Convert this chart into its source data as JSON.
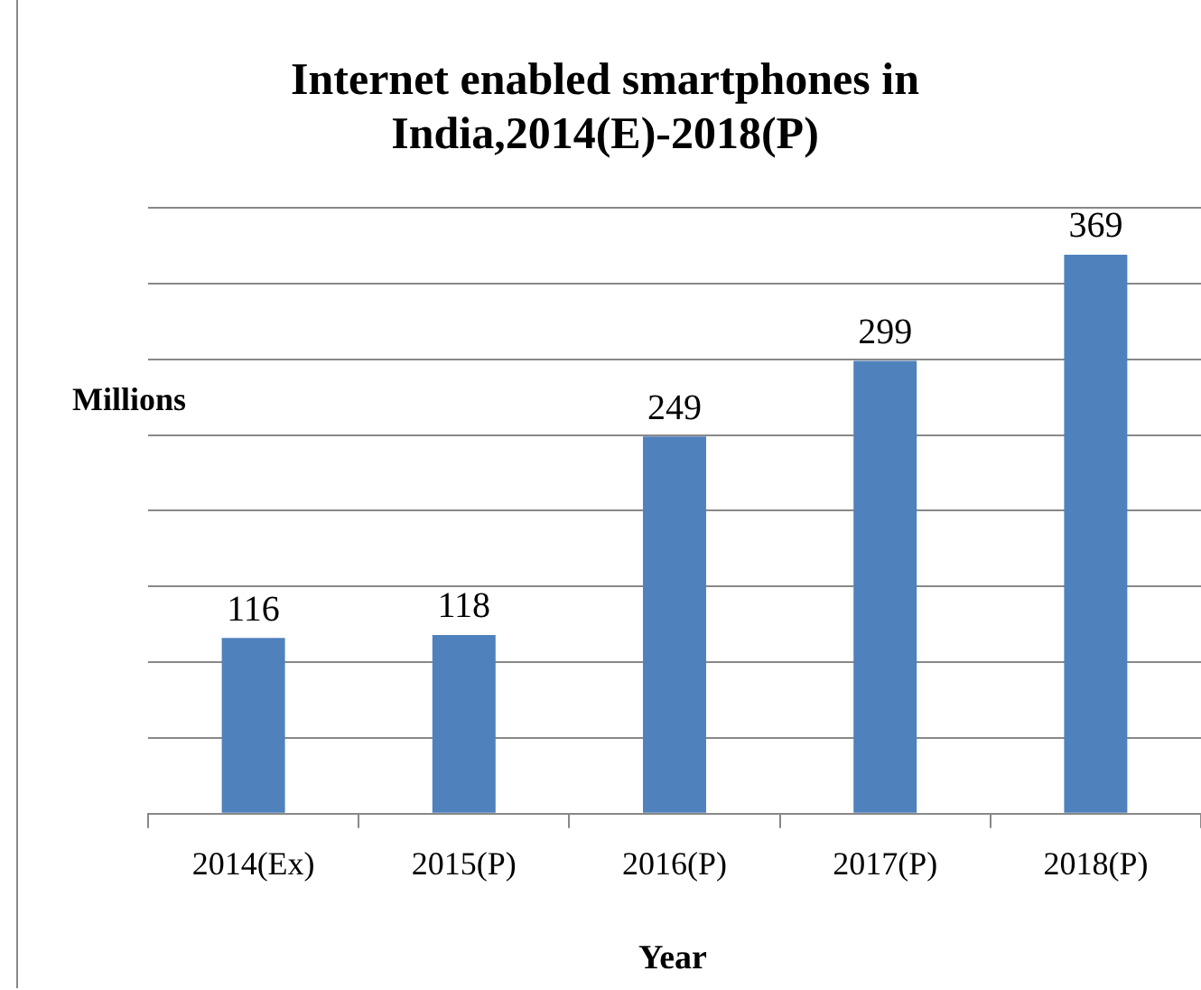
{
  "chart_data": {
    "type": "bar",
    "title": "Internet enabled smartphones in India,2014(E)-2018(P)",
    "xlabel": "Year",
    "ylabel": "Millions",
    "categories": [
      "2014(Ex)",
      "2015(P)",
      "2016(P)",
      "2017(P)",
      "2018(P)"
    ],
    "values": [
      116,
      118,
      249,
      299,
      369
    ],
    "color": "#4f81bd",
    "data_labels": true,
    "grid": "y",
    "tick_labels": "x",
    "legend": false,
    "ylim": [
      0,
      400
    ],
    "yticks": [
      {
        "value": 0,
        "label": null
      },
      {
        "value": 50,
        "label": null
      },
      {
        "value": 100,
        "label": null
      },
      {
        "value": 150,
        "label": null
      },
      {
        "value": 200,
        "label": null
      },
      {
        "value": 250,
        "label": null
      },
      {
        "value": 300,
        "label": null
      },
      {
        "value": 350,
        "label": null
      },
      {
        "value": 400,
        "label": null
      }
    ]
  }
}
